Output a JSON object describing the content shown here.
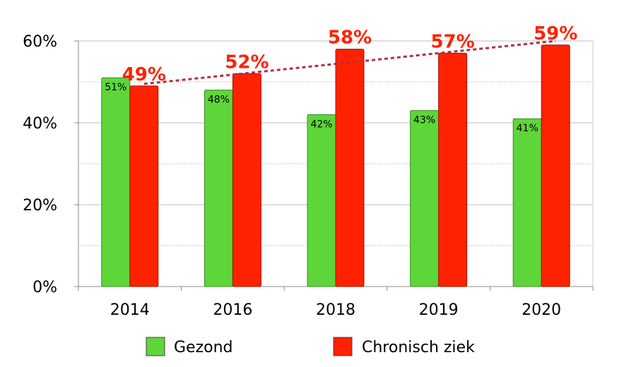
{
  "chart_data": {
    "type": "bar",
    "categories": [
      "2014",
      "2016",
      "2018",
      "2019",
      "2020"
    ],
    "series": [
      {
        "name": "Gezond",
        "values": [
          51,
          48,
          42,
          43,
          41
        ],
        "labels": [
          "51%",
          "48%",
          "42%",
          "43%",
          "41%"
        ],
        "color": "#5ed63a"
      },
      {
        "name": "Chronisch ziek",
        "values": [
          49,
          52,
          58,
          57,
          59
        ],
        "labels": [
          "49%",
          "52%",
          "58%",
          "57%",
          "59%"
        ],
        "color": "#ff2200"
      }
    ],
    "trendline": {
      "series": "Chronisch ziek",
      "from": 49.5,
      "to": 60,
      "color": "#b03040",
      "style": "dotted"
    },
    "ylim": [
      0,
      60
    ],
    "yticks": [
      {
        "value": 0,
        "label": "0%"
      },
      {
        "value": 20,
        "label": "20%"
      },
      {
        "value": 40,
        "label": "40%"
      },
      {
        "value": 60,
        "label": "60%"
      }
    ],
    "title": "",
    "xlabel": "",
    "ylabel": "",
    "grid": "horizontal dotted",
    "legend": "bottom"
  }
}
